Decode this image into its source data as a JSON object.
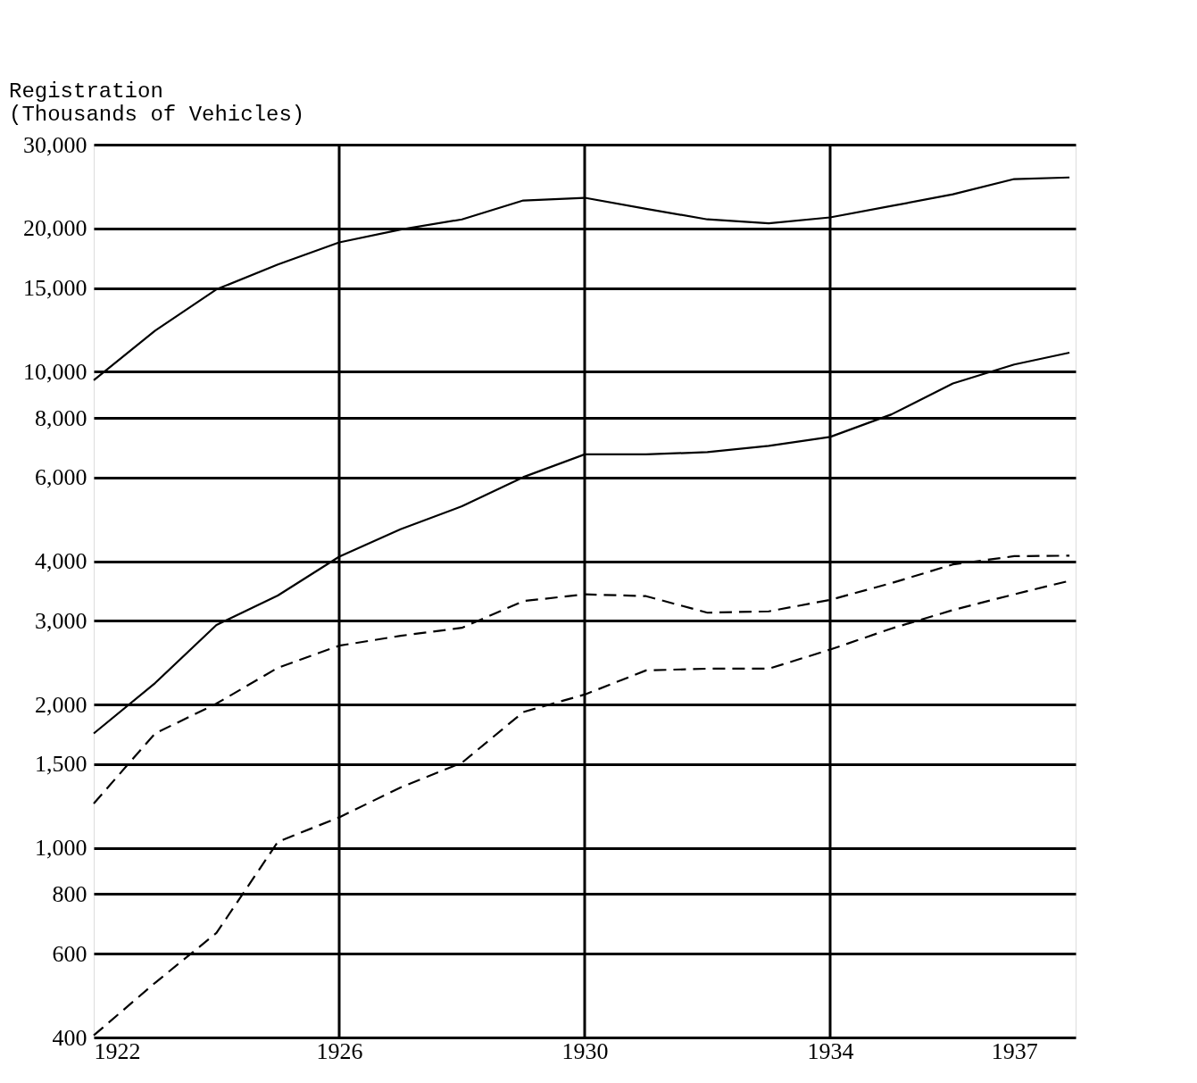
{
  "chart_data": {
    "type": "line",
    "ylabel": "Registration\n(Thousands of Vehicles)",
    "x": [
      1922,
      1923,
      1924,
      1925,
      1926,
      1927,
      1928,
      1929,
      1930,
      1931,
      1932,
      1933,
      1934,
      1935,
      1936,
      1937,
      1937.9
    ],
    "series": [
      {
        "color": "#000000",
        "line_style": "solid",
        "values": [
          9600,
          12200,
          14900,
          16800,
          18700,
          19900,
          20900,
          22900,
          23200,
          22000,
          20900,
          20500,
          21100,
          22300,
          23600,
          25400,
          25600
        ]
      },
      {
        "color": "#000000",
        "line_style": "solid",
        "values": [
          1740,
          2220,
          2940,
          3390,
          4090,
          4670,
          5220,
          6010,
          6710,
          6710,
          6780,
          6990,
          7300,
          8140,
          9450,
          10360,
          10970
        ]
      },
      {
        "color": "#000000",
        "line_style": "dashed",
        "values": [
          1240,
          1740,
          2010,
          2390,
          2660,
          2790,
          2900,
          3300,
          3410,
          3380,
          3120,
          3140,
          3320,
          3600,
          3940,
          4100,
          4110
        ]
      },
      {
        "color": "#000000",
        "line_style": "dashed",
        "values": [
          404,
          521,
          663,
          1030,
          1160,
          1340,
          1510,
          1930,
          2100,
          2360,
          2380,
          2380,
          2610,
          2890,
          3160,
          3410,
          3640
        ]
      }
    ],
    "log": "y",
    "xlim": [
      1922,
      1938
    ],
    "xticks": [
      1922,
      1926,
      1930,
      1934,
      1937
    ],
    "ylim": [
      400,
      30000
    ],
    "yticks": [
      400,
      600,
      800,
      {
        "value": 1000,
        "label": "1,000"
      },
      {
        "value": 1500,
        "label": "1,500"
      },
      {
        "value": 2000,
        "label": "2,000"
      },
      {
        "value": 3000,
        "label": "3,000"
      },
      {
        "value": 4000,
        "label": "4,000"
      },
      {
        "value": 6000,
        "label": "6,000"
      },
      {
        "value": 8000,
        "label": "8,000"
      },
      {
        "value": 10000,
        "label": "10,000"
      },
      {
        "value": 15000,
        "label": "15,000"
      },
      {
        "value": 20000,
        "label": "20,000"
      },
      {
        "value": 30000,
        "label": "30,000"
      }
    ],
    "grid": "y",
    "marker": "none",
    "ref_lines": [
      {
        "axis": "x",
        "value": 1926
      },
      {
        "axis": "x",
        "value": 1930
      },
      {
        "axis": "x",
        "value": 1934
      }
    ]
  }
}
